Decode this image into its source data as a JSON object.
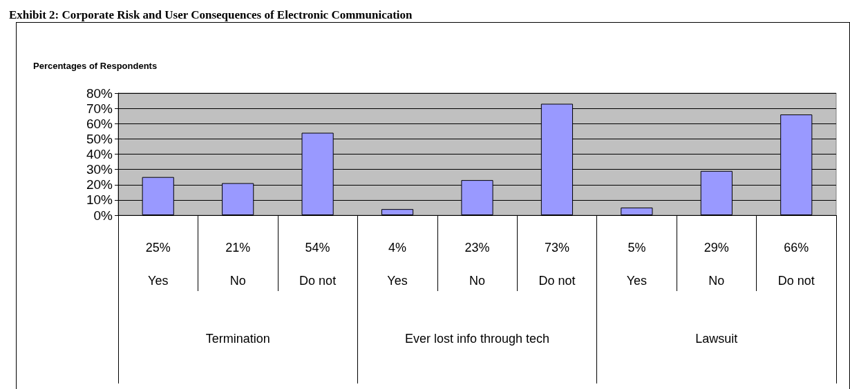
{
  "chart_data": {
    "type": "bar",
    "title": "Exhibit 2: Corporate Risk and User Consequences of Electronic Communication",
    "ylabel": "Percentages of Respondents",
    "categories": [
      "Yes",
      "No",
      "Do not",
      "Yes",
      "No",
      "Do not",
      "Yes",
      "No",
      "Do not"
    ],
    "values": [
      25,
      21,
      54,
      4,
      23,
      73,
      5,
      29,
      66
    ],
    "value_labels": [
      "25%",
      "21%",
      "54%",
      "4%",
      "23%",
      "73%",
      "5%",
      "29%",
      "66%"
    ],
    "color": "#9999ff",
    "annotations": [
      "Termination",
      "Ever lost info through tech",
      "Lawsuit"
    ],
    "ylim": [
      0,
      80
    ],
    "yticks": [
      {
        "value": 0,
        "label": "0%"
      },
      {
        "value": 10,
        "label": "10%"
      },
      {
        "value": 20,
        "label": "20%"
      },
      {
        "value": 30,
        "label": "30%"
      },
      {
        "value": 40,
        "label": "40%"
      },
      {
        "value": 50,
        "label": "50%"
      },
      {
        "value": 60,
        "label": "60%"
      },
      {
        "value": 70,
        "label": "70%"
      },
      {
        "value": 80,
        "label": "80%"
      }
    ],
    "grid": "y"
  }
}
